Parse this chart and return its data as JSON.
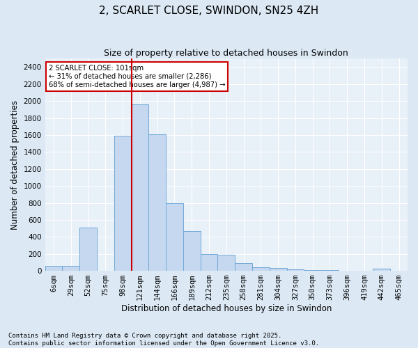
{
  "title": "2, SCARLET CLOSE, SWINDON, SN25 4ZH",
  "subtitle": "Size of property relative to detached houses in Swindon",
  "xlabel": "Distribution of detached houses by size in Swindon",
  "ylabel": "Number of detached properties",
  "footer_line1": "Contains HM Land Registry data © Crown copyright and database right 2025.",
  "footer_line2": "Contains public sector information licensed under the Open Government Licence v3.0.",
  "categories": [
    "6sqm",
    "29sqm",
    "52sqm",
    "75sqm",
    "98sqm",
    "121sqm",
    "144sqm",
    "166sqm",
    "189sqm",
    "212sqm",
    "235sqm",
    "258sqm",
    "281sqm",
    "304sqm",
    "327sqm",
    "350sqm",
    "373sqm",
    "396sqm",
    "419sqm",
    "442sqm",
    "465sqm"
  ],
  "values": [
    55,
    55,
    510,
    0,
    1590,
    1960,
    1610,
    800,
    470,
    200,
    190,
    90,
    40,
    30,
    20,
    12,
    5,
    0,
    0,
    25,
    0
  ],
  "bar_color": "#c5d8f0",
  "bar_edge_color": "#6fa8d8",
  "vline_color": "#cc0000",
  "vline_index": 4.5,
  "annotation_text": "2 SCARLET CLOSE: 101sqm\n← 31% of detached houses are smaller (2,286)\n68% of semi-detached houses are larger (4,987) →",
  "annotation_box_color": "#cc0000",
  "ylim": [
    0,
    2500
  ],
  "yticks": [
    0,
    200,
    400,
    600,
    800,
    1000,
    1200,
    1400,
    1600,
    1800,
    2000,
    2200,
    2400
  ],
  "background_color": "#dce9f5",
  "plot_bg_color": "#e8f0f8",
  "grid_color": "#ffffff",
  "title_fontsize": 11,
  "subtitle_fontsize": 9,
  "axis_label_fontsize": 8.5,
  "tick_fontsize": 7.5,
  "footer_fontsize": 6.5
}
